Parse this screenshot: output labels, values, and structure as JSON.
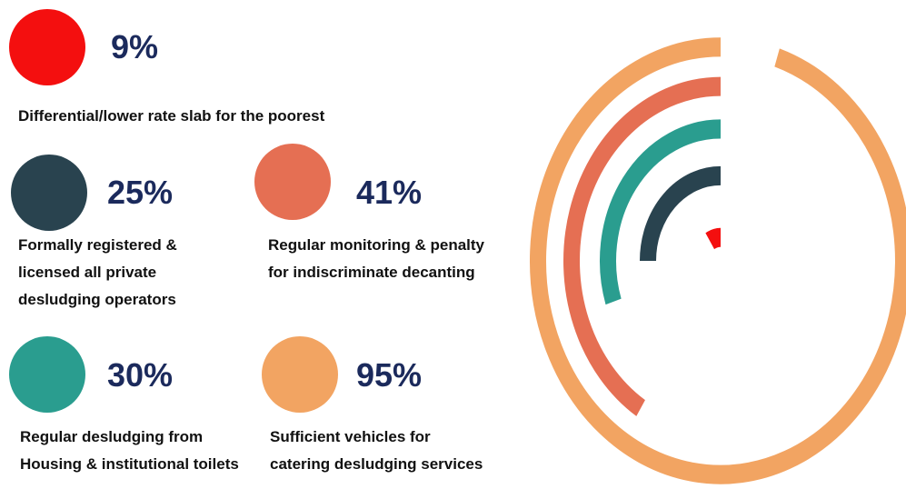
{
  "chart_data": {
    "type": "radial_bar",
    "categories": [
      "Differential/lower rate slab for the poorest",
      "Formally registered & licensed all private desludging operators",
      "Regular monitoring & penalty for indiscriminate decanting",
      "Regular desludging from Housing & institutional toilets",
      "Sufficient vehicles for catering desludging services"
    ],
    "values": [
      9,
      25,
      41,
      30,
      95
    ],
    "value_labels": [
      "9%",
      "25%",
      "41%",
      "30%",
      "95%"
    ],
    "colors": [
      "#f40f0f",
      "#29434f",
      "#e56f53",
      "#2a9d8f",
      "#f2a462"
    ]
  }
}
